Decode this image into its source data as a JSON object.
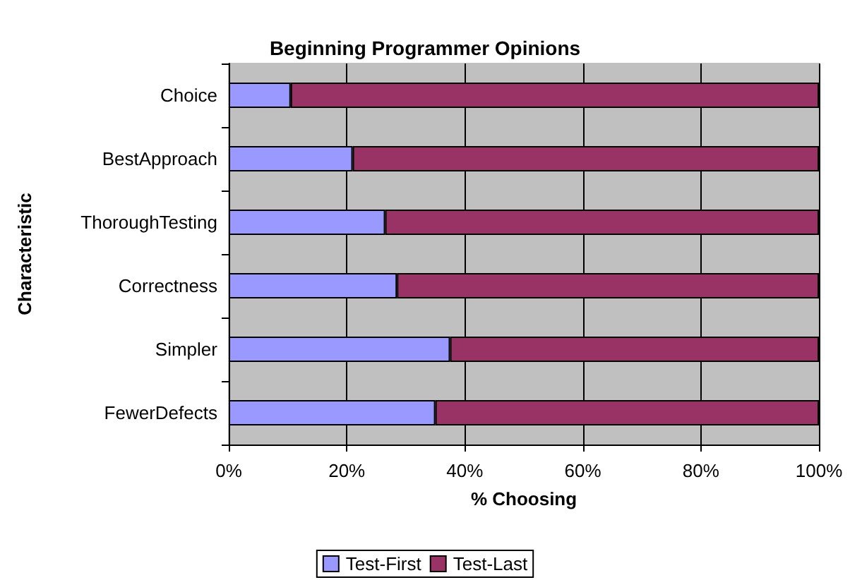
{
  "chart_data": {
    "type": "bar",
    "title": "Beginning Programmer Opinions",
    "xlabel": "% Choosing",
    "ylabel": "Characteristic",
    "orientation": "horizontal",
    "stacked": true,
    "categories": [
      "Choice",
      "BestApproach",
      "ThoroughTesting",
      "Correctness",
      "Simpler",
      "FewerDefects"
    ],
    "series": [
      {
        "name": "Test-First",
        "color": "#9999ff",
        "values": [
          10.5,
          21,
          26.5,
          28.5,
          37.5,
          35
        ]
      },
      {
        "name": "Test-Last",
        "color": "#993366",
        "values": [
          89.5,
          79,
          73.5,
          71.5,
          62.5,
          65
        ]
      }
    ],
    "xlim": [
      0,
      100
    ],
    "xticks": [
      {
        "value": 0,
        "label": "0%"
      },
      {
        "value": 20,
        "label": "20%"
      },
      {
        "value": 40,
        "label": "40%"
      },
      {
        "value": 60,
        "label": "60%"
      },
      {
        "value": 80,
        "label": "80%"
      },
      {
        "value": 100,
        "label": "100%"
      }
    ],
    "grid": "x",
    "legend": "bottom"
  }
}
